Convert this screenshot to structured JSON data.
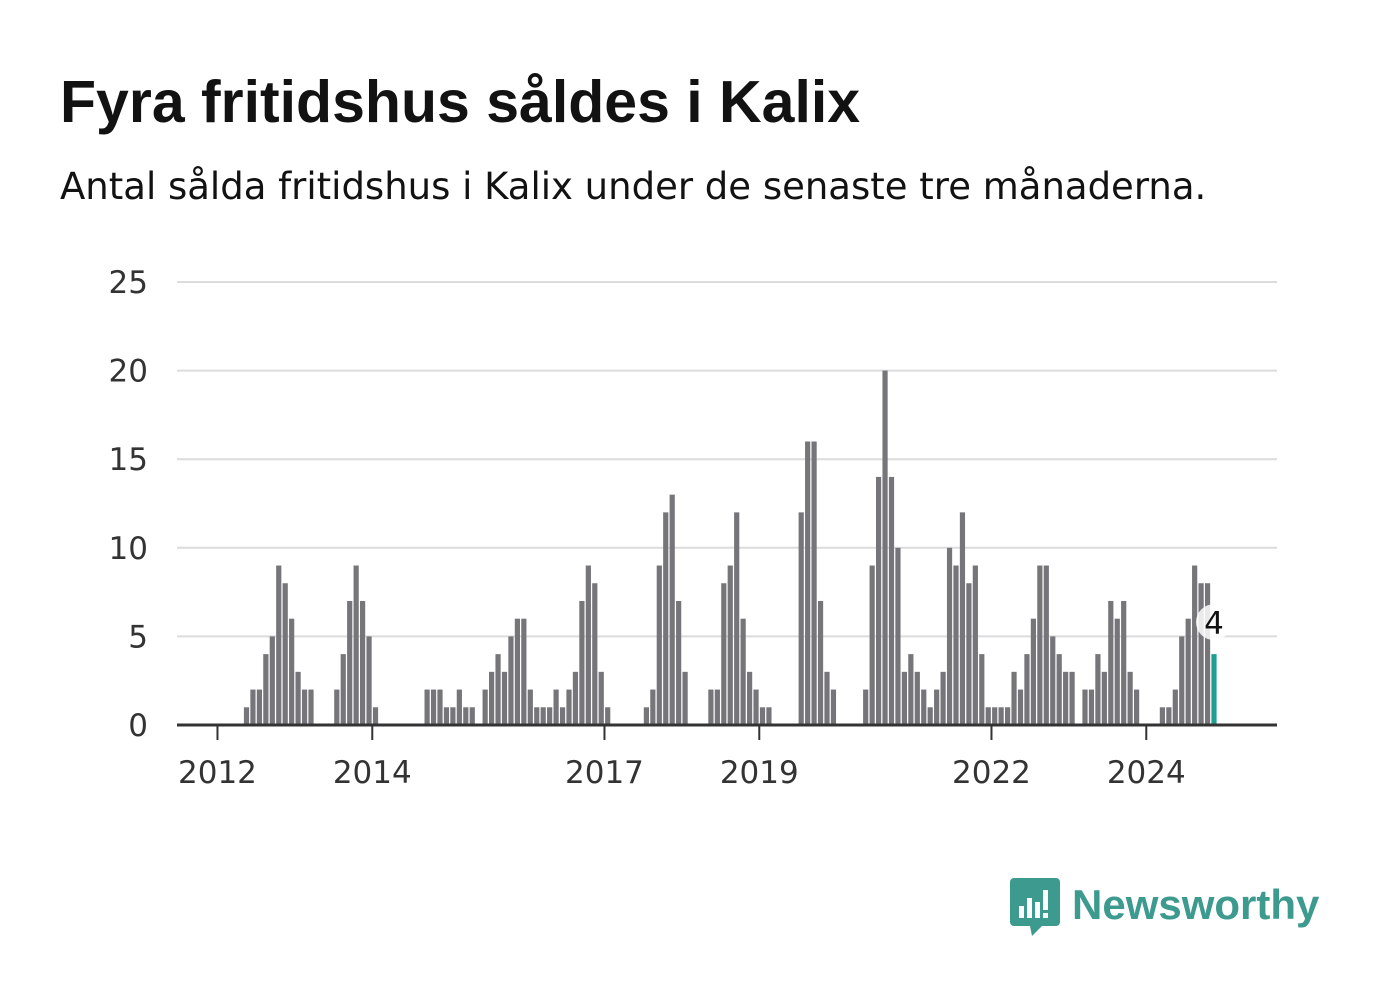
{
  "title": "Fyra fritidshus såldes i Kalix",
  "subtitle": "Antal sålda fritidshus i Kalix under de senaste tre månaderna.",
  "brand": {
    "name": "Newsworthy",
    "icon": "newsworthy-logo-icon",
    "color": "#3d9a8e"
  },
  "colors": {
    "bar": "#76767a",
    "highlight": "#1f9f94",
    "grid": "#dcdcdc",
    "axis": "#333333"
  },
  "chart_data": {
    "type": "bar",
    "first_period": "2011-07",
    "interval": "month",
    "values": [
      0,
      0,
      0,
      0,
      0,
      0,
      0,
      0,
      0,
      0,
      1,
      2,
      2,
      4,
      5,
      9,
      8,
      6,
      3,
      2,
      2,
      null,
      null,
      null,
      2,
      4,
      7,
      9,
      7,
      5,
      1,
      0,
      0,
      0,
      0,
      0,
      0,
      0,
      2,
      2,
      2,
      1,
      1,
      2,
      1,
      1,
      null,
      2,
      3,
      4,
      3,
      5,
      6,
      6,
      2,
      1,
      1,
      1,
      2,
      1,
      2,
      3,
      7,
      9,
      8,
      3,
      1,
      0,
      0,
      0,
      0,
      0,
      1,
      2,
      9,
      12,
      13,
      7,
      3,
      null,
      null,
      null,
      2,
      2,
      8,
      9,
      12,
      6,
      3,
      2,
      1,
      1,
      null,
      null,
      null,
      0,
      12,
      16,
      16,
      7,
      3,
      2,
      null,
      null,
      null,
      null,
      2,
      9,
      14,
      20,
      14,
      10,
      3,
      4,
      3,
      2,
      1,
      2,
      3,
      10,
      9,
      12,
      8,
      9,
      4,
      1,
      1,
      1,
      1,
      3,
      2,
      4,
      6,
      9,
      9,
      5,
      4,
      3,
      3,
      null,
      2,
      2,
      4,
      3,
      7,
      6,
      7,
      3,
      2,
      null,
      null,
      null,
      1,
      1,
      2,
      5,
      6,
      9,
      8,
      8,
      4
    ],
    "highlight_last": true,
    "data_label": "4",
    "ylim": [
      0,
      25
    ],
    "yticks": [
      0,
      5,
      10,
      15,
      20,
      25
    ],
    "xticks": [
      {
        "label": "2012",
        "period": "2012-01"
      },
      {
        "label": "2014",
        "period": "2014-01"
      },
      {
        "label": "2017",
        "period": "2017-01"
      },
      {
        "label": "2019",
        "period": "2019-01"
      },
      {
        "label": "2022",
        "period": "2022-01"
      },
      {
        "label": "2024",
        "period": "2024-01"
      }
    ],
    "grid": true,
    "legend": "none"
  }
}
